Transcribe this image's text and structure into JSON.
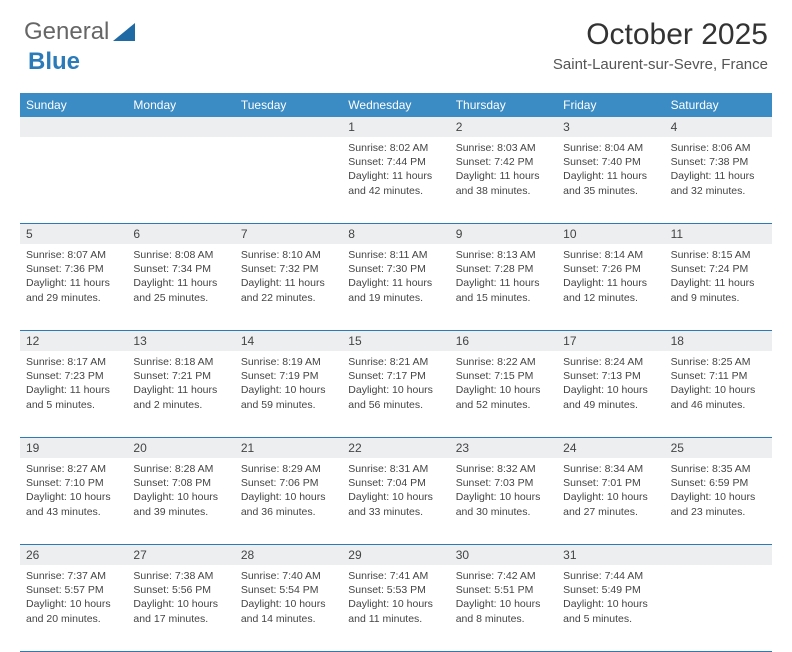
{
  "brand": {
    "part1": "General",
    "part2": "Blue"
  },
  "title": "October 2025",
  "location": "Saint-Laurent-sur-Sevre, France",
  "header_bg": "#3b8bc4",
  "accent": "#2b7bb9",
  "daynum_bg": "#eceef0",
  "text_color": "#444444",
  "font_family": "Arial",
  "day_names": [
    "Sunday",
    "Monday",
    "Tuesday",
    "Wednesday",
    "Thursday",
    "Friday",
    "Saturday"
  ],
  "weeks": [
    {
      "nums": [
        "",
        "",
        "",
        "1",
        "2",
        "3",
        "4"
      ],
      "cells": [
        null,
        null,
        null,
        {
          "sunrise": "Sunrise: 8:02 AM",
          "sunset": "Sunset: 7:44 PM",
          "daylight": "Daylight: 11 hours and 42 minutes."
        },
        {
          "sunrise": "Sunrise: 8:03 AM",
          "sunset": "Sunset: 7:42 PM",
          "daylight": "Daylight: 11 hours and 38 minutes."
        },
        {
          "sunrise": "Sunrise: 8:04 AM",
          "sunset": "Sunset: 7:40 PM",
          "daylight": "Daylight: 11 hours and 35 minutes."
        },
        {
          "sunrise": "Sunrise: 8:06 AM",
          "sunset": "Sunset: 7:38 PM",
          "daylight": "Daylight: 11 hours and 32 minutes."
        }
      ]
    },
    {
      "nums": [
        "5",
        "6",
        "7",
        "8",
        "9",
        "10",
        "11"
      ],
      "cells": [
        {
          "sunrise": "Sunrise: 8:07 AM",
          "sunset": "Sunset: 7:36 PM",
          "daylight": "Daylight: 11 hours and 29 minutes."
        },
        {
          "sunrise": "Sunrise: 8:08 AM",
          "sunset": "Sunset: 7:34 PM",
          "daylight": "Daylight: 11 hours and 25 minutes."
        },
        {
          "sunrise": "Sunrise: 8:10 AM",
          "sunset": "Sunset: 7:32 PM",
          "daylight": "Daylight: 11 hours and 22 minutes."
        },
        {
          "sunrise": "Sunrise: 8:11 AM",
          "sunset": "Sunset: 7:30 PM",
          "daylight": "Daylight: 11 hours and 19 minutes."
        },
        {
          "sunrise": "Sunrise: 8:13 AM",
          "sunset": "Sunset: 7:28 PM",
          "daylight": "Daylight: 11 hours and 15 minutes."
        },
        {
          "sunrise": "Sunrise: 8:14 AM",
          "sunset": "Sunset: 7:26 PM",
          "daylight": "Daylight: 11 hours and 12 minutes."
        },
        {
          "sunrise": "Sunrise: 8:15 AM",
          "sunset": "Sunset: 7:24 PM",
          "daylight": "Daylight: 11 hours and 9 minutes."
        }
      ]
    },
    {
      "nums": [
        "12",
        "13",
        "14",
        "15",
        "16",
        "17",
        "18"
      ],
      "cells": [
        {
          "sunrise": "Sunrise: 8:17 AM",
          "sunset": "Sunset: 7:23 PM",
          "daylight": "Daylight: 11 hours and 5 minutes."
        },
        {
          "sunrise": "Sunrise: 8:18 AM",
          "sunset": "Sunset: 7:21 PM",
          "daylight": "Daylight: 11 hours and 2 minutes."
        },
        {
          "sunrise": "Sunrise: 8:19 AM",
          "sunset": "Sunset: 7:19 PM",
          "daylight": "Daylight: 10 hours and 59 minutes."
        },
        {
          "sunrise": "Sunrise: 8:21 AM",
          "sunset": "Sunset: 7:17 PM",
          "daylight": "Daylight: 10 hours and 56 minutes."
        },
        {
          "sunrise": "Sunrise: 8:22 AM",
          "sunset": "Sunset: 7:15 PM",
          "daylight": "Daylight: 10 hours and 52 minutes."
        },
        {
          "sunrise": "Sunrise: 8:24 AM",
          "sunset": "Sunset: 7:13 PM",
          "daylight": "Daylight: 10 hours and 49 minutes."
        },
        {
          "sunrise": "Sunrise: 8:25 AM",
          "sunset": "Sunset: 7:11 PM",
          "daylight": "Daylight: 10 hours and 46 minutes."
        }
      ]
    },
    {
      "nums": [
        "19",
        "20",
        "21",
        "22",
        "23",
        "24",
        "25"
      ],
      "cells": [
        {
          "sunrise": "Sunrise: 8:27 AM",
          "sunset": "Sunset: 7:10 PM",
          "daylight": "Daylight: 10 hours and 43 minutes."
        },
        {
          "sunrise": "Sunrise: 8:28 AM",
          "sunset": "Sunset: 7:08 PM",
          "daylight": "Daylight: 10 hours and 39 minutes."
        },
        {
          "sunrise": "Sunrise: 8:29 AM",
          "sunset": "Sunset: 7:06 PM",
          "daylight": "Daylight: 10 hours and 36 minutes."
        },
        {
          "sunrise": "Sunrise: 8:31 AM",
          "sunset": "Sunset: 7:04 PM",
          "daylight": "Daylight: 10 hours and 33 minutes."
        },
        {
          "sunrise": "Sunrise: 8:32 AM",
          "sunset": "Sunset: 7:03 PM",
          "daylight": "Daylight: 10 hours and 30 minutes."
        },
        {
          "sunrise": "Sunrise: 8:34 AM",
          "sunset": "Sunset: 7:01 PM",
          "daylight": "Daylight: 10 hours and 27 minutes."
        },
        {
          "sunrise": "Sunrise: 8:35 AM",
          "sunset": "Sunset: 6:59 PM",
          "daylight": "Daylight: 10 hours and 23 minutes."
        }
      ]
    },
    {
      "nums": [
        "26",
        "27",
        "28",
        "29",
        "30",
        "31",
        ""
      ],
      "cells": [
        {
          "sunrise": "Sunrise: 7:37 AM",
          "sunset": "Sunset: 5:57 PM",
          "daylight": "Daylight: 10 hours and 20 minutes."
        },
        {
          "sunrise": "Sunrise: 7:38 AM",
          "sunset": "Sunset: 5:56 PM",
          "daylight": "Daylight: 10 hours and 17 minutes."
        },
        {
          "sunrise": "Sunrise: 7:40 AM",
          "sunset": "Sunset: 5:54 PM",
          "daylight": "Daylight: 10 hours and 14 minutes."
        },
        {
          "sunrise": "Sunrise: 7:41 AM",
          "sunset": "Sunset: 5:53 PM",
          "daylight": "Daylight: 10 hours and 11 minutes."
        },
        {
          "sunrise": "Sunrise: 7:42 AM",
          "sunset": "Sunset: 5:51 PM",
          "daylight": "Daylight: 10 hours and 8 minutes."
        },
        {
          "sunrise": "Sunrise: 7:44 AM",
          "sunset": "Sunset: 5:49 PM",
          "daylight": "Daylight: 10 hours and 5 minutes."
        },
        null
      ]
    }
  ]
}
